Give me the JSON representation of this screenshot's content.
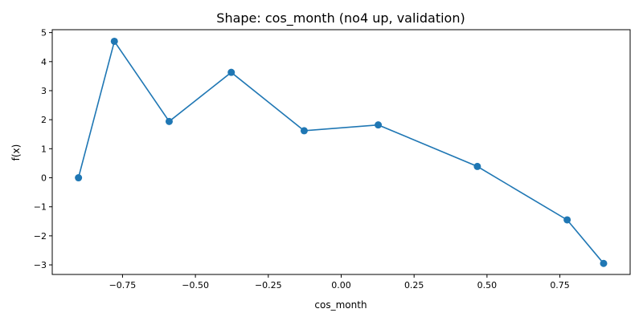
{
  "chart_data": {
    "type": "line",
    "title": "Shape: cos_month (no4 up, validation)",
    "xlabel": "cos_month",
    "ylabel": "f(x)",
    "xlim": [
      -0.991,
      0.991
    ],
    "ylim": [
      -3.33,
      5.1
    ],
    "xticks": [
      -0.75,
      -0.5,
      -0.25,
      0.0,
      0.25,
      0.5,
      0.75
    ],
    "xtick_labels": [
      "−0.75",
      "−0.50",
      "−0.25",
      "0.00",
      "0.25",
      "0.50",
      "0.75"
    ],
    "yticks": [
      -3,
      -2,
      -1,
      0,
      1,
      2,
      3,
      4,
      5
    ],
    "ytick_labels": [
      "−3",
      "−2",
      "−1",
      "0",
      "1",
      "2",
      "3",
      "4",
      "5"
    ],
    "grid": false,
    "color": "#1f77b4",
    "x": [
      -0.901,
      -0.778,
      -0.59,
      -0.377,
      -0.127,
      0.127,
      0.467,
      0.775,
      0.9
    ],
    "y": [
      0.0,
      4.7,
      1.94,
      3.63,
      1.62,
      1.82,
      0.39,
      -1.45,
      -2.95
    ]
  }
}
